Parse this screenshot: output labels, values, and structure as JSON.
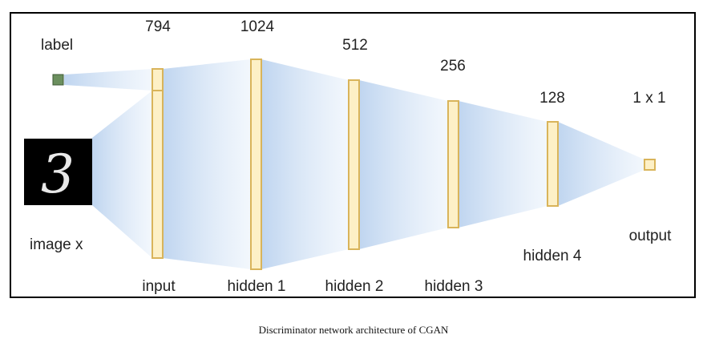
{
  "diagram": {
    "label_text": "label",
    "image_text": "image x",
    "digit": "3",
    "layers": [
      {
        "name": "input",
        "size": "794"
      },
      {
        "name": "hidden 1",
        "size": "1024"
      },
      {
        "name": "hidden 2",
        "size": "512"
      },
      {
        "name": "hidden 3",
        "size": "256"
      },
      {
        "name": "hidden 4",
        "size": "128"
      },
      {
        "name": "output",
        "size": "1 x 1"
      }
    ],
    "colors": {
      "layer_fill": "#fdf0c6",
      "layer_stroke": "#d9b45a",
      "connection": "#c9dcf2",
      "label_square": "#6b8f5e"
    }
  },
  "caption": "Discriminator network architecture of CGAN"
}
